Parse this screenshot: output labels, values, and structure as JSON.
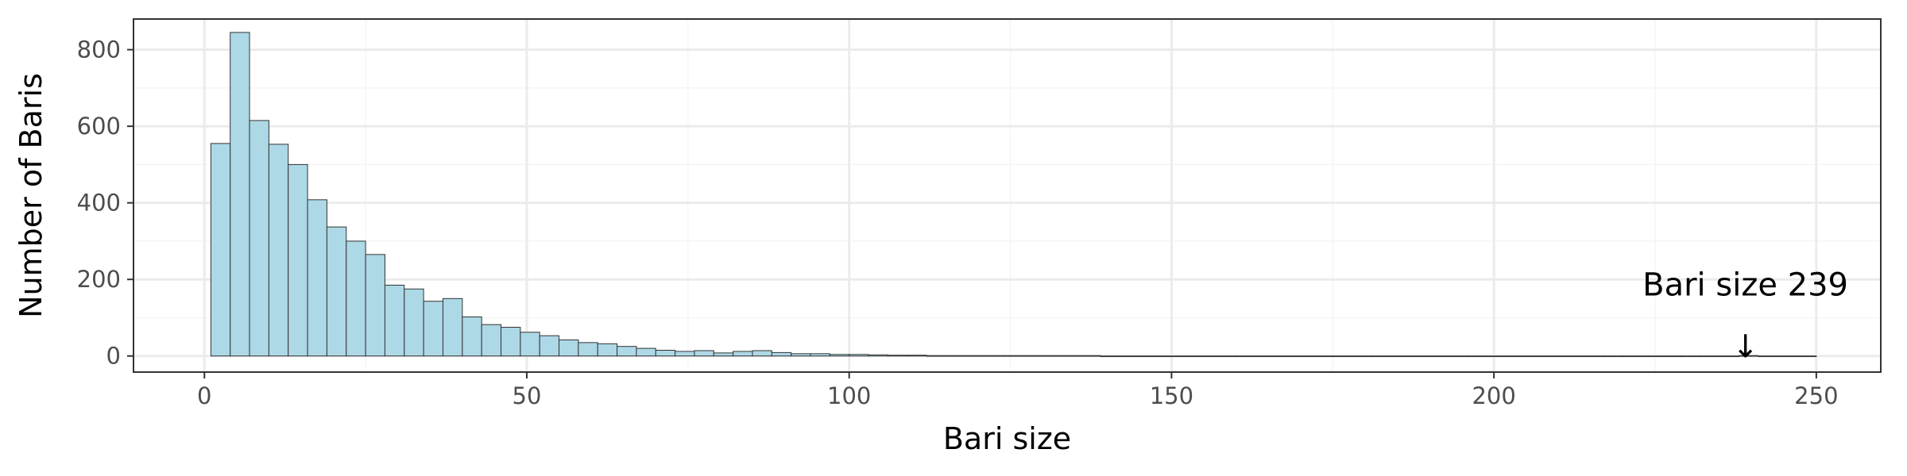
{
  "chart_data": {
    "type": "bar",
    "subtype": "histogram",
    "xlabel": "Bari size",
    "ylabel": "Number of Baris",
    "xlim": [
      -11,
      260
    ],
    "ylim": [
      -42,
      880
    ],
    "x_ticks": [
      0,
      50,
      100,
      150,
      200,
      250
    ],
    "y_ticks": [
      0,
      200,
      400,
      600,
      800
    ],
    "grid": true,
    "bin_width": 3,
    "bin_start": 1,
    "values": [
      555,
      845,
      615,
      553,
      500,
      408,
      337,
      300,
      265,
      185,
      175,
      143,
      150,
      102,
      82,
      75,
      62,
      53,
      42,
      35,
      32,
      25,
      20,
      15,
      12,
      14,
      8,
      12,
      14,
      9,
      6,
      6,
      4,
      4,
      3,
      2,
      2,
      1,
      1,
      1,
      1,
      1,
      1,
      1,
      1,
      1,
      0,
      0,
      0,
      0,
      0,
      0,
      0,
      0,
      0,
      0,
      0,
      0,
      0,
      0,
      0,
      0,
      0,
      0,
      0,
      0,
      0,
      0,
      0,
      0,
      0,
      0,
      0,
      0,
      0,
      0,
      0,
      0,
      0,
      1,
      0,
      0,
      0
    ],
    "annotation": {
      "text": "Bari size 239",
      "x": 239,
      "arrow": "↓"
    },
    "colors": {
      "bar_fill": "#add8e6",
      "bar_stroke": "#333333",
      "grid_major": "#ebebeb",
      "grid_minor": "#f5f5f5",
      "panel_border": "#333333"
    }
  }
}
